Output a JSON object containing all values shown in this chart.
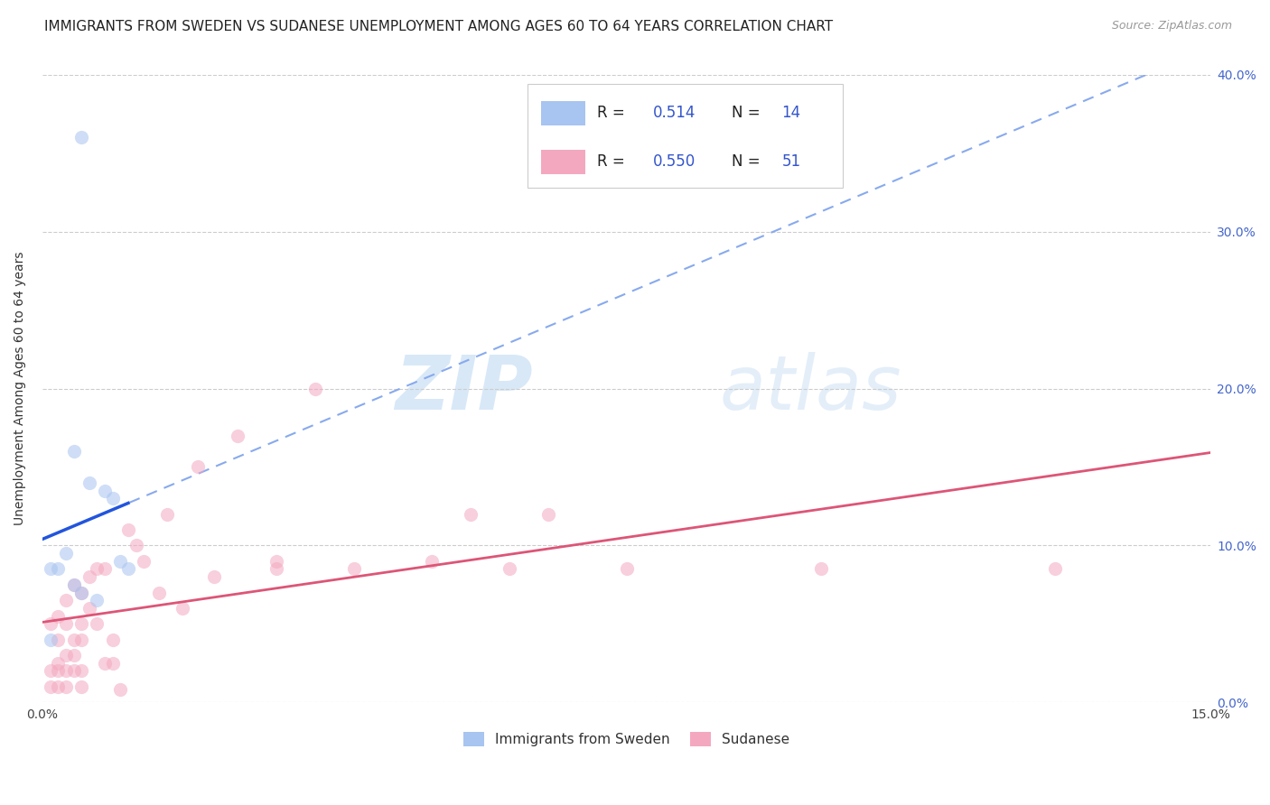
{
  "title": "IMMIGRANTS FROM SWEDEN VS SUDANESE UNEMPLOYMENT AMONG AGES 60 TO 64 YEARS CORRELATION CHART",
  "source": "Source: ZipAtlas.com",
  "ylabel": "Unemployment Among Ages 60 to 64 years",
  "xlim": [
    0,
    0.15
  ],
  "ylim": [
    0,
    0.4
  ],
  "watermark_zip": "ZIP",
  "watermark_atlas": "atlas",
  "legend_r1": "0.514",
  "legend_n1": "14",
  "legend_r2": "0.550",
  "legend_n2": "51",
  "sweden_color": "#a8c4f0",
  "sudanese_color": "#f4a8c0",
  "sweden_line_color": "#2255dd",
  "sudanese_line_color": "#dd5577",
  "dashed_color": "#88aaee",
  "sweden_scatter_x": [
    0.001,
    0.001,
    0.002,
    0.003,
    0.004,
    0.004,
    0.005,
    0.005,
    0.006,
    0.007,
    0.008,
    0.009,
    0.01,
    0.011
  ],
  "sweden_scatter_y": [
    0.04,
    0.085,
    0.085,
    0.095,
    0.075,
    0.16,
    0.07,
    0.36,
    0.14,
    0.065,
    0.135,
    0.13,
    0.09,
    0.085
  ],
  "sudanese_scatter_x": [
    0.001,
    0.001,
    0.001,
    0.002,
    0.002,
    0.002,
    0.002,
    0.002,
    0.003,
    0.003,
    0.003,
    0.003,
    0.003,
    0.004,
    0.004,
    0.004,
    0.004,
    0.005,
    0.005,
    0.005,
    0.005,
    0.005,
    0.006,
    0.006,
    0.007,
    0.007,
    0.008,
    0.008,
    0.009,
    0.009,
    0.01,
    0.011,
    0.012,
    0.013,
    0.015,
    0.016,
    0.018,
    0.02,
    0.022,
    0.025,
    0.03,
    0.03,
    0.035,
    0.04,
    0.05,
    0.055,
    0.06,
    0.065,
    0.075,
    0.1,
    0.13
  ],
  "sudanese_scatter_y": [
    0.01,
    0.02,
    0.05,
    0.01,
    0.02,
    0.025,
    0.04,
    0.055,
    0.01,
    0.02,
    0.03,
    0.05,
    0.065,
    0.02,
    0.03,
    0.04,
    0.075,
    0.01,
    0.02,
    0.04,
    0.05,
    0.07,
    0.06,
    0.08,
    0.05,
    0.085,
    0.025,
    0.085,
    0.025,
    0.04,
    0.008,
    0.11,
    0.1,
    0.09,
    0.07,
    0.12,
    0.06,
    0.15,
    0.08,
    0.17,
    0.085,
    0.09,
    0.2,
    0.085,
    0.09,
    0.12,
    0.085,
    0.12,
    0.085,
    0.085,
    0.085
  ],
  "background_color": "#ffffff",
  "grid_color": "#cccccc",
  "title_fontsize": 11,
  "axis_label_fontsize": 10,
  "tick_fontsize": 10,
  "scatter_size": 120,
  "scatter_alpha": 0.55
}
